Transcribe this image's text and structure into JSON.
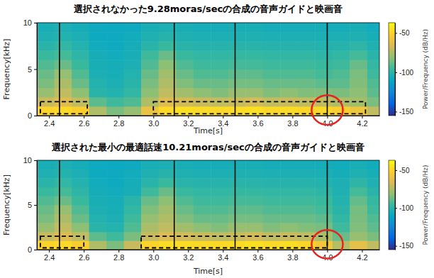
{
  "chart_data": [
    {
      "type": "heatmap",
      "title": "選択されなかった9.28moras/secの合成の音声ガイドと映画音",
      "xlabel": "Time[s]",
      "ylabel": "Frequency[kHz]",
      "xlim": [
        2.33,
        4.3
      ],
      "ylim": [
        0,
        10
      ],
      "xticks": [
        2.4,
        2.6,
        2.8,
        {
          "value": 3,
          "label": "3.0"
        },
        3.2,
        3.4,
        3.6,
        3.8,
        {
          "value": 4,
          "label": "4.0"
        },
        4.2
      ],
      "yticks": [
        0,
        5,
        10
      ],
      "x_edges": [
        2.33,
        2.43,
        2.53,
        2.63,
        2.73,
        2.83,
        2.93,
        3.03,
        3.13,
        3.23,
        3.33,
        3.43,
        3.53,
        3.63,
        3.73,
        3.83,
        3.93,
        4.03,
        4.13,
        4.23,
        4.33
      ],
      "y_edges": [
        0,
        1,
        2,
        3,
        4,
        5,
        6,
        7,
        8,
        9,
        10
      ],
      "values": [
        [
          -50,
          -48,
          -52,
          -75,
          -85,
          -80,
          -60,
          -48,
          -46,
          -47,
          -48,
          -47,
          -46,
          -48,
          -47,
          -49,
          -48,
          -52,
          -58,
          -72
        ],
        [
          -70,
          -65,
          -72,
          -90,
          -95,
          -92,
          -75,
          -65,
          -68,
          -70,
          -72,
          -70,
          -68,
          -72,
          -70,
          -72,
          -72,
          -75,
          -78,
          -85
        ],
        [
          -80,
          -72,
          -82,
          -100,
          -102,
          -98,
          -82,
          -72,
          -78,
          -82,
          -84,
          -80,
          -80,
          -84,
          -82,
          -84,
          -84,
          -85,
          -82,
          -90
        ],
        [
          -85,
          -76,
          -88,
          -102,
          -104,
          -100,
          -85,
          -75,
          -84,
          -88,
          -88,
          -86,
          -86,
          -88,
          -88,
          -88,
          -90,
          -90,
          -84,
          -92
        ],
        [
          -88,
          -80,
          -92,
          -104,
          -105,
          -102,
          -88,
          -78,
          -88,
          -92,
          -92,
          -90,
          -90,
          -92,
          -92,
          -92,
          -94,
          -92,
          -85,
          -95
        ],
        [
          -92,
          -88,
          -96,
          -105,
          -106,
          -104,
          -92,
          -82,
          -92,
          -95,
          -95,
          -94,
          -94,
          -95,
          -95,
          -95,
          -96,
          -95,
          -88,
          -97
        ],
        [
          -96,
          -94,
          -99,
          -106,
          -107,
          -105,
          -95,
          -88,
          -96,
          -98,
          -98,
          -97,
          -97,
          -98,
          -98,
          -98,
          -99,
          -98,
          -94,
          -100
        ],
        [
          -100,
          -98,
          -102,
          -107,
          -108,
          -106,
          -100,
          -96,
          -100,
          -101,
          -101,
          -100,
          -100,
          -101,
          -101,
          -101,
          -102,
          -101,
          -99,
          -103
        ],
        [
          -103,
          -102,
          -104,
          -108,
          -108,
          -107,
          -103,
          -101,
          -103,
          -104,
          -104,
          -103,
          -103,
          -104,
          -104,
          -104,
          -104,
          -104,
          -103,
          -105
        ],
        [
          -105,
          -104,
          -106,
          -108,
          -109,
          -108,
          -105,
          -104,
          -105,
          -106,
          -106,
          -105,
          -105,
          -106,
          -106,
          -106,
          -106,
          -106,
          -105,
          -107
        ]
      ],
      "colorbar": {
        "label": "Power/Frequency (dB/Hz)",
        "range": [
          -155,
          -37
        ],
        "ticks": [
          -50,
          -100,
          -150
        ]
      },
      "vlines": [
        2.46,
        3.12,
        3.47,
        4.0
      ],
      "boxes": [
        {
          "x": [
            2.35,
            2.62
          ],
          "y": [
            0.2,
            1.5
          ]
        },
        {
          "x": [
            3.0,
            4.22
          ],
          "y": [
            0.2,
            1.5
          ]
        }
      ],
      "circles": [
        {
          "x": 4.0,
          "y": 0.6,
          "rx": 0.09,
          "ry": 1.6
        }
      ]
    },
    {
      "type": "heatmap",
      "title": "選択された最小の最適話速10.21moras/secの合成の音声ガイドと映画音",
      "xlabel": "Time[s]",
      "ylabel": "Frequency[kHz]",
      "xlim": [
        2.33,
        4.3
      ],
      "ylim": [
        0,
        10
      ],
      "xticks": [
        2.4,
        2.6,
        2.8,
        {
          "value": 3,
          "label": "3.0"
        },
        3.2,
        3.4,
        3.6,
        3.8,
        {
          "value": 4,
          "label": "4.0"
        },
        4.2
      ],
      "yticks": [
        0,
        5,
        10
      ],
      "x_edges": [
        2.33,
        2.43,
        2.53,
        2.63,
        2.73,
        2.83,
        2.93,
        3.03,
        3.13,
        3.23,
        3.33,
        3.43,
        3.53,
        3.63,
        3.73,
        3.83,
        3.93,
        4.03,
        4.13,
        4.23,
        4.33
      ],
      "y_edges": [
        0,
        1,
        2,
        3,
        4,
        5,
        6,
        7,
        8,
        9,
        10
      ],
      "values": [
        [
          -50,
          -48,
          -52,
          -75,
          -85,
          -70,
          -50,
          -47,
          -47,
          -48,
          -48,
          -47,
          -46,
          -48,
          -47,
          -49,
          -56,
          -74,
          -62,
          -72
        ],
        [
          -70,
          -65,
          -72,
          -90,
          -95,
          -85,
          -70,
          -65,
          -68,
          -70,
          -72,
          -70,
          -68,
          -72,
          -70,
          -72,
          -76,
          -88,
          -80,
          -85
        ],
        [
          -80,
          -72,
          -82,
          -100,
          -102,
          -92,
          -76,
          -72,
          -78,
          -82,
          -84,
          -80,
          -80,
          -84,
          -82,
          -84,
          -86,
          -95,
          -84,
          -90
        ],
        [
          -85,
          -76,
          -88,
          -102,
          -104,
          -95,
          -80,
          -75,
          -84,
          -88,
          -88,
          -86,
          -86,
          -88,
          -88,
          -88,
          -90,
          -98,
          -85,
          -92
        ],
        [
          -88,
          -80,
          -92,
          -104,
          -105,
          -98,
          -84,
          -78,
          -88,
          -92,
          -92,
          -90,
          -90,
          -92,
          -92,
          -92,
          -94,
          -100,
          -86,
          -95
        ],
        [
          -92,
          -88,
          -96,
          -105,
          -106,
          -100,
          -88,
          -82,
          -92,
          -95,
          -95,
          -94,
          -94,
          -95,
          -95,
          -95,
          -96,
          -102,
          -89,
          -97
        ],
        [
          -96,
          -94,
          -99,
          -106,
          -107,
          -105,
          -95,
          -88,
          -96,
          -98,
          -98,
          -97,
          -97,
          -98,
          -98,
          -98,
          -99,
          -103,
          -94,
          -100
        ],
        [
          -100,
          -98,
          -102,
          -107,
          -108,
          -106,
          -100,
          -96,
          -100,
          -101,
          -101,
          -100,
          -100,
          -101,
          -101,
          -101,
          -102,
          -104,
          -99,
          -103
        ],
        [
          -103,
          -102,
          -104,
          -108,
          -108,
          -107,
          -103,
          -101,
          -103,
          -104,
          -104,
          -103,
          -103,
          -104,
          -104,
          -104,
          -104,
          -106,
          -103,
          -105
        ],
        [
          -105,
          -104,
          -106,
          -108,
          -109,
          -108,
          -105,
          -104,
          -105,
          -106,
          -106,
          -105,
          -105,
          -106,
          -106,
          -106,
          -106,
          -107,
          -105,
          -107
        ]
      ],
      "colorbar": {
        "label": "Power/Frequency (dB/Hz)",
        "range": [
          -155,
          -37
        ],
        "ticks": [
          -50,
          -100,
          -150
        ]
      },
      "vlines": [
        2.46,
        3.12,
        3.47,
        4.0
      ],
      "boxes": [
        {
          "x": [
            2.35,
            2.6
          ],
          "y": [
            0.2,
            1.5
          ]
        },
        {
          "x": [
            2.93,
            4.0
          ],
          "y": [
            0.2,
            1.5
          ]
        }
      ],
      "circles": [
        {
          "x": 4.0,
          "y": 0.6,
          "rx": 0.09,
          "ry": 1.6
        }
      ]
    }
  ]
}
